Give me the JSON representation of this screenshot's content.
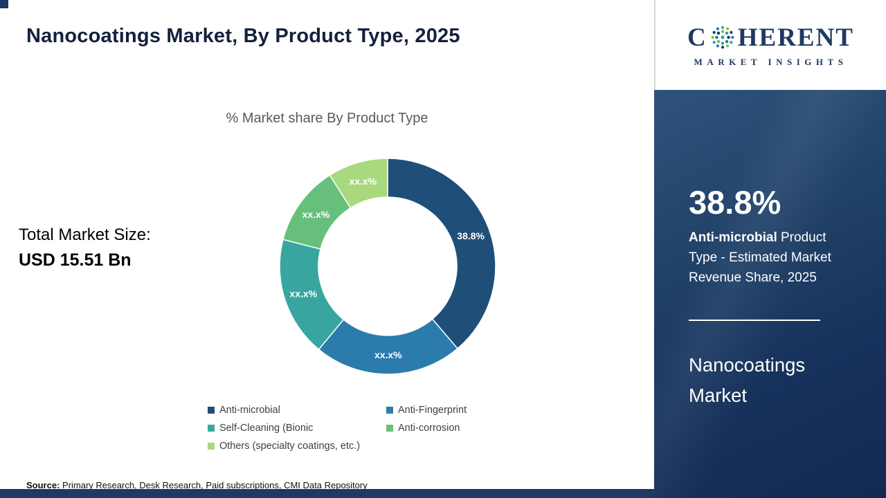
{
  "header": {
    "title": "Nanocoatings Market, By Product Type, 2025"
  },
  "logo": {
    "letter_first": "C",
    "word_rest": "HERENT",
    "tagline": "MARKET INSIGHTS"
  },
  "chart_data": {
    "type": "pie",
    "donut": true,
    "title": "% Market share By Product Type",
    "categories": [
      "Anti-microbial",
      "Anti-Fingerprint",
      "Self-Cleaning (Bionic",
      "Anti-corrosion",
      "Others (specialty coatings, etc.)"
    ],
    "values": [
      38.8,
      22.2,
      18.0,
      12.0,
      9.0
    ],
    "labels": [
      "38.8%",
      "xx.x%",
      "xx.x%",
      "xx.x%",
      "xx.x%"
    ],
    "colors": [
      "#1F4E79",
      "#2B7CAD",
      "#38A69F",
      "#66C07B",
      "#A8D97C"
    ],
    "legend_position": "bottom"
  },
  "market_size": {
    "label": "Total Market Size:",
    "value": "USD 15.51 Bn"
  },
  "source": {
    "label": "Source:",
    "text": " Primary Research, Desk Research, Paid subscriptions, CMI Data Repository"
  },
  "sidebar": {
    "stat_value": "38.8%",
    "stat_bold": "Anti-microbial",
    "stat_rest": " Product Type - Estimated Market Revenue Share, 2025",
    "market_name": "Nanocoatings Market"
  }
}
